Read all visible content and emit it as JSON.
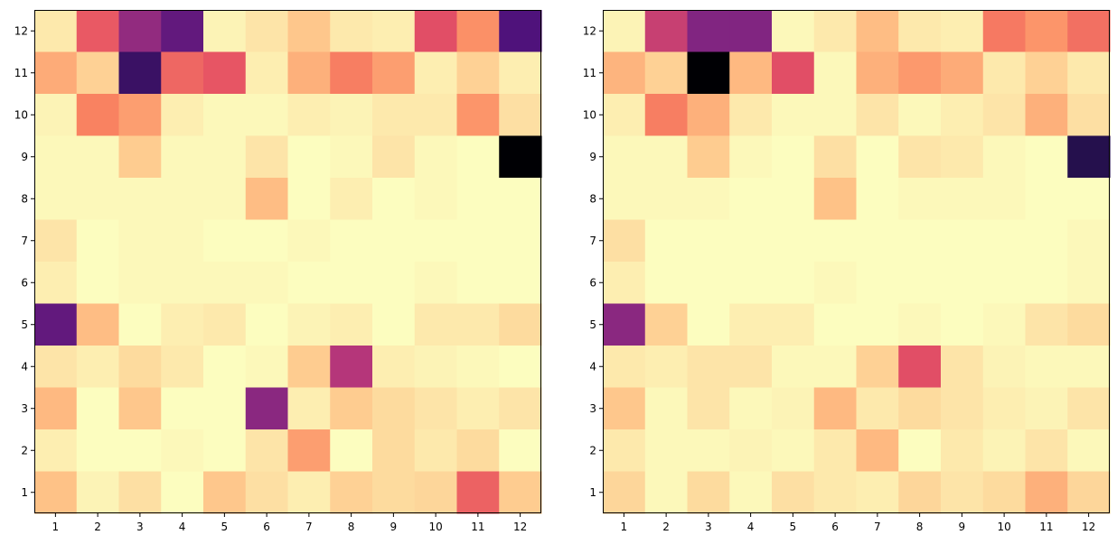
{
  "chart_data": [
    {
      "type": "heatmap",
      "colormap": "magma",
      "x_categories": [
        "1",
        "2",
        "3",
        "4",
        "5",
        "6",
        "7",
        "8",
        "9",
        "10",
        "11",
        "12"
      ],
      "y_categories": [
        "1",
        "2",
        "3",
        "4",
        "5",
        "6",
        "7",
        "8",
        "9",
        "10",
        "11",
        "12"
      ],
      "value_range": [
        0,
        1
      ],
      "z_rows_top_to_bottom": [
        [
          0.96,
          0.65,
          0.42,
          0.3,
          0.98,
          0.95,
          0.89,
          0.96,
          0.97,
          0.62,
          0.77,
          0.25
        ],
        [
          0.83,
          0.91,
          0.2,
          0.68,
          0.64,
          0.97,
          0.84,
          0.73,
          0.8,
          0.97,
          0.91,
          0.97
        ],
        [
          0.98,
          0.74,
          0.8,
          0.97,
          0.99,
          0.99,
          0.97,
          0.98,
          0.96,
          0.96,
          0.78,
          0.94
        ],
        [
          0.99,
          0.99,
          0.9,
          0.99,
          0.99,
          0.95,
          1.0,
          0.99,
          0.95,
          0.99,
          1.0,
          0.0
        ],
        [
          0.99,
          0.99,
          0.99,
          0.99,
          0.99,
          0.87,
          1.0,
          0.97,
          1.0,
          0.99,
          1.0,
          1.0
        ],
        [
          0.95,
          1.0,
          0.99,
          0.99,
          1.0,
          1.0,
          0.99,
          1.0,
          1.0,
          1.0,
          1.0,
          1.0
        ],
        [
          0.97,
          1.0,
          0.99,
          0.99,
          0.99,
          0.99,
          1.0,
          1.0,
          1.0,
          0.99,
          1.0,
          1.0
        ],
        [
          0.3,
          0.87,
          1.0,
          0.97,
          0.96,
          1.0,
          0.98,
          0.97,
          1.0,
          0.96,
          0.96,
          0.93
        ],
        [
          0.95,
          0.97,
          0.93,
          0.96,
          1.0,
          0.99,
          0.9,
          0.5,
          0.97,
          0.98,
          0.99,
          1.0
        ],
        [
          0.86,
          1.0,
          0.89,
          1.0,
          1.0,
          0.4,
          0.97,
          0.9,
          0.93,
          0.95,
          0.97,
          0.95
        ],
        [
          0.97,
          1.0,
          1.0,
          0.99,
          1.0,
          0.95,
          0.8,
          1.0,
          0.93,
          0.96,
          0.93,
          1.0
        ],
        [
          0.88,
          0.98,
          0.94,
          1.0,
          0.89,
          0.94,
          0.97,
          0.91,
          0.93,
          0.92,
          0.67,
          0.9
        ]
      ]
    },
    {
      "type": "heatmap",
      "colormap": "magma",
      "x_categories": [
        "1",
        "2",
        "3",
        "4",
        "5",
        "6",
        "7",
        "8",
        "9",
        "10",
        "11",
        "12"
      ],
      "y_categories": [
        "1",
        "2",
        "3",
        "4",
        "5",
        "6",
        "7",
        "8",
        "9",
        "10",
        "11",
        "12"
      ],
      "value_range": [
        0,
        1
      ],
      "z_rows_top_to_bottom": [
        [
          0.98,
          0.55,
          0.38,
          0.38,
          0.99,
          0.96,
          0.87,
          0.96,
          0.97,
          0.72,
          0.78,
          0.7
        ],
        [
          0.85,
          0.91,
          0.0,
          0.86,
          0.62,
          0.99,
          0.84,
          0.79,
          0.83,
          0.96,
          0.91,
          0.96
        ],
        [
          0.97,
          0.73,
          0.84,
          0.96,
          0.99,
          0.99,
          0.95,
          0.99,
          0.97,
          0.95,
          0.84,
          0.94
        ],
        [
          0.99,
          0.99,
          0.9,
          0.99,
          1.0,
          0.94,
          1.0,
          0.95,
          0.96,
          0.99,
          1.0,
          0.15
        ],
        [
          0.99,
          0.99,
          0.99,
          1.0,
          1.0,
          0.88,
          1.0,
          0.99,
          0.99,
          0.99,
          1.0,
          1.0
        ],
        [
          0.94,
          1.0,
          1.0,
          1.0,
          1.0,
          1.0,
          1.0,
          1.0,
          1.0,
          1.0,
          1.0,
          0.99
        ],
        [
          0.97,
          1.0,
          1.0,
          1.0,
          1.0,
          0.99,
          1.0,
          1.0,
          1.0,
          1.0,
          1.0,
          0.99
        ],
        [
          0.4,
          0.91,
          1.0,
          0.97,
          0.97,
          1.0,
          1.0,
          0.99,
          1.0,
          0.99,
          0.95,
          0.93
        ],
        [
          0.96,
          0.97,
          0.95,
          0.95,
          0.99,
          0.99,
          0.91,
          0.62,
          0.95,
          0.98,
          0.99,
          0.99
        ],
        [
          0.89,
          0.99,
          0.95,
          0.99,
          0.98,
          0.86,
          0.96,
          0.93,
          0.95,
          0.97,
          0.98,
          0.95
        ],
        [
          0.96,
          0.99,
          0.99,
          0.98,
          0.99,
          0.96,
          0.86,
          1.0,
          0.96,
          0.98,
          0.95,
          0.99
        ],
        [
          0.92,
          0.99,
          0.93,
          0.99,
          0.94,
          0.96,
          0.97,
          0.92,
          0.95,
          0.93,
          0.84,
          0.92
        ]
      ]
    }
  ]
}
